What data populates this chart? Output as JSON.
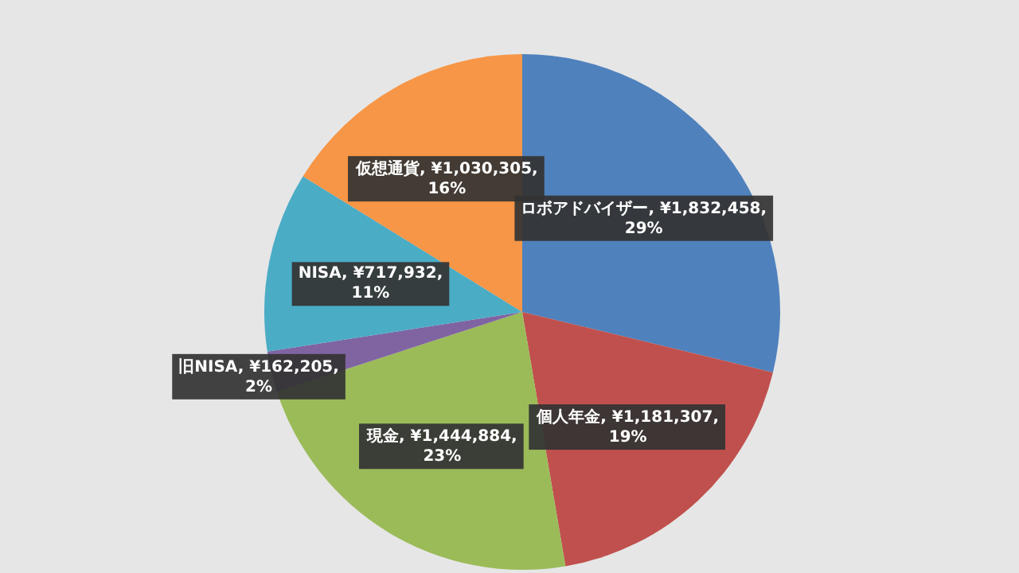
{
  "chart_data": {
    "type": "pie",
    "categories": [
      "ロボアドバイザー",
      "個人年金",
      "現金",
      "旧NISA",
      "NISA",
      "仮想通貨"
    ],
    "values": [
      1832458,
      1181307,
      1444884,
      162205,
      717932,
      1030305
    ],
    "colors": [
      "#4f81bd",
      "#c0504d",
      "#9bbb59",
      "#8064a2",
      "#4bacc6",
      "#f79646"
    ],
    "value_labels": [
      ", ¥1,832,458, 29%",
      ", ¥1,181,307, 19%",
      ", ¥1,444,884, 23%",
      ", ¥162,205, 2%",
      ", ¥717,932, 11%",
      ", ¥1,030,305, 16%"
    ]
  }
}
